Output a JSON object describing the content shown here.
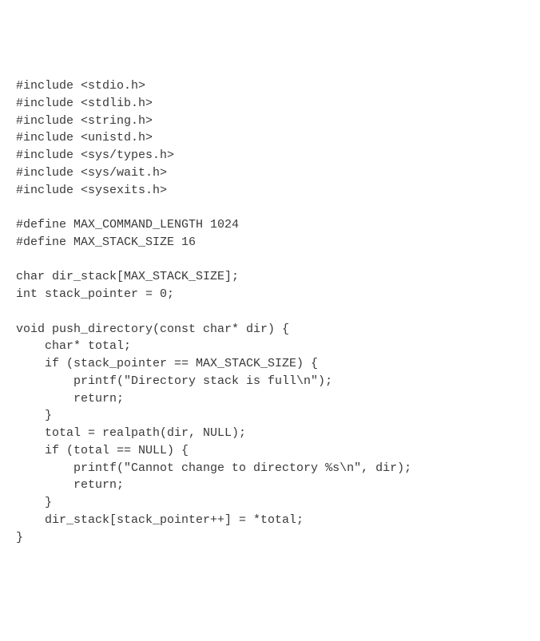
{
  "code": {
    "font_family": "Consolas, monospace",
    "font_size": 15,
    "text_color": "#393939",
    "background_color": "#ffffff",
    "line_height": 1.45,
    "lines": [
      "#include <stdio.h>",
      "#include <stdlib.h>",
      "#include <string.h>",
      "#include <unistd.h>",
      "#include <sys/types.h>",
      "#include <sys/wait.h>",
      "#include <sysexits.h>",
      "",
      "#define MAX_COMMAND_LENGTH 1024",
      "#define MAX_STACK_SIZE 16",
      "",
      "char dir_stack[MAX_STACK_SIZE];",
      "int stack_pointer = 0;",
      "",
      "void push_directory(const char* dir) {",
      "    char* total;",
      "    if (stack_pointer == MAX_STACK_SIZE) {",
      "        printf(\"Directory stack is full\\n\");",
      "        return;",
      "    }",
      "    total = realpath(dir, NULL);",
      "    if (total == NULL) {",
      "        printf(\"Cannot change to directory %s\\n\", dir);",
      "        return;",
      "    }",
      "    dir_stack[stack_pointer++] = *total;",
      "}"
    ]
  }
}
